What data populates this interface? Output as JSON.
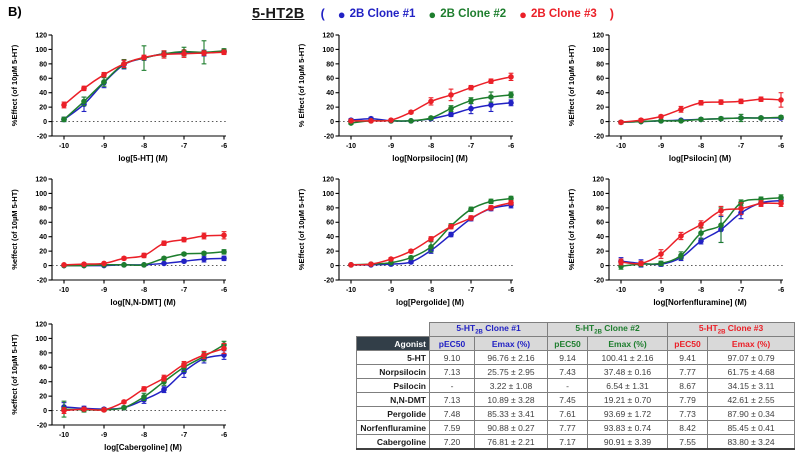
{
  "panel_label": "B)",
  "header": {
    "title": "5-HT2B",
    "paren_open": "(",
    "paren_close": ")",
    "legend": [
      {
        "label": "2B Clone #1",
        "color": "#2222c4"
      },
      {
        "label": "2B Clone #2",
        "color": "#1e7e2e"
      },
      {
        "label": "2B Clone #3",
        "color": "#eb2028"
      }
    ]
  },
  "chart_data": [
    {
      "id": "5-ht",
      "type": "line",
      "xlabel": "log[5-HT] (M)",
      "ylabel": "%Effect (of 10µM 5-HT)",
      "x": [
        -10,
        -9.5,
        -9,
        -8.5,
        -8,
        -7.5,
        -7,
        -6.5,
        -6
      ],
      "xticks": [
        -10,
        -9,
        -8,
        -7,
        -6
      ],
      "yticks": [
        -20,
        0,
        20,
        40,
        60,
        80,
        100,
        120
      ],
      "ylim": [
        -20,
        120
      ],
      "zero_line": true,
      "grid": false,
      "series": [
        {
          "name": "2B Clone #1",
          "color": "#2222c4",
          "values": [
            3,
            24,
            54,
            79,
            88,
            94,
            95,
            95,
            97
          ],
          "err": [
            3,
            10,
            7,
            6,
            3,
            3,
            3,
            4,
            3
          ]
        },
        {
          "name": "2B Clone #2",
          "color": "#1e7e2e",
          "values": [
            3,
            28,
            55,
            80,
            88,
            94,
            97,
            96,
            98
          ],
          "err": [
            3,
            6,
            6,
            6,
            17,
            4,
            6,
            16,
            3
          ]
        },
        {
          "name": "2B Clone #3",
          "color": "#eb2028",
          "values": [
            23,
            46,
            65,
            80,
            89,
            93,
            94,
            95,
            96
          ],
          "err": [
            4,
            3,
            3,
            5,
            3,
            5,
            5,
            3,
            3
          ]
        }
      ]
    },
    {
      "id": "norpsilocin",
      "type": "line",
      "xlabel": "log[Norpsilocin] (M)",
      "ylabel": "% Effect (of 10µM 5-HT)",
      "x": [
        -10,
        -9.5,
        -9,
        -8.5,
        -8,
        -7.5,
        -7,
        -6.5,
        -6
      ],
      "xticks": [
        -10,
        -9,
        -8,
        -7,
        -6
      ],
      "yticks": [
        -20,
        0,
        20,
        40,
        60,
        80,
        100,
        120
      ],
      "ylim": [
        -20,
        120
      ],
      "zero_line": true,
      "grid": false,
      "series": [
        {
          "name": "2B Clone #1",
          "color": "#2222c4",
          "values": [
            2,
            4,
            1,
            1,
            4,
            10,
            18,
            23,
            26
          ],
          "err": [
            2,
            2,
            1,
            1,
            2,
            3,
            7,
            9,
            4
          ]
        },
        {
          "name": "2B Clone #2",
          "color": "#1e7e2e",
          "values": [
            -2,
            1,
            1,
            1,
            5,
            18,
            29,
            34,
            37
          ],
          "err": [
            2,
            1,
            1,
            1,
            2,
            4,
            4,
            7,
            4
          ]
        },
        {
          "name": "2B Clone #3",
          "color": "#eb2028",
          "values": [
            1,
            1,
            2,
            13,
            28,
            37,
            47,
            56,
            62
          ],
          "err": [
            2,
            1,
            1,
            2,
            5,
            8,
            3,
            3,
            5
          ]
        }
      ]
    },
    {
      "id": "psilocin",
      "type": "line",
      "xlabel": "log[Psilocin] (M)",
      "ylabel": "%Effect (of 10µM 5-HT)",
      "x": [
        -10,
        -9.5,
        -9,
        -8.5,
        -8,
        -7.5,
        -7,
        -6.5,
        -6
      ],
      "xticks": [
        -10,
        -9,
        -8,
        -7,
        -6
      ],
      "yticks": [
        -20,
        0,
        20,
        40,
        60,
        80,
        100,
        120
      ],
      "ylim": [
        -20,
        120
      ],
      "zero_line": true,
      "grid": false,
      "series": [
        {
          "name": "2B Clone #1",
          "color": "#2222c4",
          "values": [
            -1,
            0,
            1,
            2,
            3,
            4,
            5,
            5,
            5
          ],
          "err": [
            2,
            1,
            1,
            1,
            1,
            2,
            2,
            2,
            2
          ]
        },
        {
          "name": "2B Clone #2",
          "color": "#1e7e2e",
          "values": [
            -1,
            0,
            1,
            1,
            3,
            4,
            5,
            5,
            6
          ],
          "err": [
            2,
            1,
            1,
            1,
            2,
            2,
            5,
            2,
            2
          ]
        },
        {
          "name": "2B Clone #3",
          "color": "#eb2028",
          "values": [
            -1,
            2,
            7,
            17,
            26,
            27,
            28,
            31,
            30
          ],
          "err": [
            2,
            2,
            2,
            4,
            3,
            3,
            3,
            3,
            10
          ]
        }
      ]
    },
    {
      "id": "nn-dmt",
      "type": "line",
      "xlabel": "log[N,N-DMT] (M)",
      "ylabel": "%effect (of 10µM 5-HT)",
      "x": [
        -10,
        -9.5,
        -9,
        -8.5,
        -8,
        -7.5,
        -7,
        -6.5,
        -6
      ],
      "xticks": [
        -10,
        -9,
        -8,
        -7,
        -6
      ],
      "yticks": [
        -20,
        0,
        20,
        40,
        60,
        80,
        100,
        120
      ],
      "ylim": [
        -20,
        120
      ],
      "zero_line": true,
      "grid": false,
      "series": [
        {
          "name": "2B Clone #1",
          "color": "#2222c4",
          "values": [
            0,
            0,
            0,
            1,
            1,
            3,
            6,
            9,
            10
          ],
          "err": [
            1,
            1,
            1,
            1,
            1,
            1,
            2,
            4,
            3
          ]
        },
        {
          "name": "2B Clone #2",
          "color": "#1e7e2e",
          "values": [
            0,
            0,
            1,
            1,
            1,
            10,
            16,
            17,
            19
          ],
          "err": [
            1,
            1,
            1,
            1,
            1,
            2,
            2,
            2,
            3
          ]
        },
        {
          "name": "2B Clone #3",
          "color": "#eb2028",
          "values": [
            1,
            2,
            3,
            10,
            14,
            31,
            36,
            41,
            42
          ],
          "err": [
            1,
            1,
            1,
            2,
            3,
            3,
            3,
            4,
            5
          ]
        }
      ]
    },
    {
      "id": "pergolide",
      "type": "line",
      "xlabel": "log[Pergolide] (M)",
      "ylabel": "%Effect (of 10µM 5-HT)",
      "x": [
        -10,
        -9.5,
        -9,
        -8.5,
        -8,
        -7.5,
        -7,
        -6.5,
        -6
      ],
      "xticks": [
        -10,
        -9,
        -8,
        -7,
        -6
      ],
      "yticks": [
        -20,
        0,
        20,
        40,
        60,
        80,
        100,
        120
      ],
      "ylim": [
        -20,
        120
      ],
      "zero_line": true,
      "grid": false,
      "series": [
        {
          "name": "2B Clone #1",
          "color": "#2222c4",
          "values": [
            1,
            1,
            2,
            5,
            21,
            43,
            65,
            79,
            84
          ],
          "err": [
            1,
            1,
            1,
            2,
            4,
            3,
            3,
            3,
            4
          ]
        },
        {
          "name": "2B Clone #2",
          "color": "#1e7e2e",
          "values": [
            1,
            2,
            4,
            11,
            26,
            55,
            78,
            89,
            93
          ],
          "err": [
            1,
            1,
            1,
            2,
            7,
            3,
            3,
            3,
            3
          ]
        },
        {
          "name": "2B Clone #3",
          "color": "#eb2028",
          "values": [
            1,
            2,
            9,
            20,
            37,
            54,
            66,
            80,
            87
          ],
          "err": [
            1,
            1,
            2,
            2,
            3,
            3,
            3,
            3,
            3
          ]
        }
      ]
    },
    {
      "id": "norfenfluramine",
      "type": "line",
      "xlabel": "log[Norfenfluramine] (M)",
      "ylabel": "%Effect (of 10µM 5-HT)",
      "x": [
        -10,
        -9.5,
        -9,
        -8.5,
        -8,
        -7.5,
        -7,
        -6.5,
        -6
      ],
      "xticks": [
        -10,
        -9,
        -8,
        -7,
        -6
      ],
      "yticks": [
        -20,
        0,
        20,
        40,
        60,
        80,
        100,
        120
      ],
      "ylim": [
        -20,
        120
      ],
      "zero_line": true,
      "grid": false,
      "series": [
        {
          "name": "2B Clone #1",
          "color": "#2222c4",
          "values": [
            6,
            3,
            2,
            11,
            34,
            50,
            73,
            87,
            90
          ],
          "err": [
            5,
            5,
            3,
            4,
            4,
            18,
            8,
            4,
            4
          ]
        },
        {
          "name": "2B Clone #2",
          "color": "#1e7e2e",
          "values": [
            -1,
            2,
            3,
            14,
            45,
            56,
            87,
            92,
            94
          ],
          "err": [
            4,
            3,
            3,
            5,
            8,
            24,
            4,
            3,
            4
          ]
        },
        {
          "name": "2B Clone #3",
          "color": "#eb2028",
          "values": [
            5,
            3,
            16,
            41,
            57,
            76,
            79,
            86,
            86
          ],
          "err": [
            4,
            3,
            6,
            5,
            5,
            6,
            8,
            4,
            4
          ]
        }
      ]
    },
    {
      "id": "cabergoline",
      "type": "line",
      "xlabel": "log[Cabergoline] (M)",
      "ylabel": "%effect (of 10µM 5-HT)",
      "x": [
        -10,
        -9.5,
        -9,
        -8.5,
        -8,
        -7.5,
        -7,
        -6.5,
        -6
      ],
      "xticks": [
        -10,
        -9,
        -8,
        -7,
        -6
      ],
      "yticks": [
        -20,
        0,
        20,
        40,
        60,
        80,
        100,
        120
      ],
      "ylim": [
        -20,
        120
      ],
      "zero_line": true,
      "grid": false,
      "series": [
        {
          "name": "2B Clone #1",
          "color": "#2222c4",
          "values": [
            5,
            3,
            2,
            4,
            15,
            29,
            54,
            72,
            77
          ],
          "err": [
            6,
            3,
            2,
            2,
            5,
            4,
            8,
            6,
            6
          ]
        },
        {
          "name": "2B Clone #2",
          "color": "#1e7e2e",
          "values": [
            2,
            1,
            1,
            4,
            19,
            40,
            60,
            75,
            91
          ],
          "err": [
            11,
            3,
            2,
            2,
            5,
            5,
            6,
            6,
            5
          ]
        },
        {
          "name": "2B Clone #3",
          "color": "#eb2028",
          "values": [
            0,
            2,
            1,
            12,
            30,
            45,
            64,
            77,
            86
          ],
          "err": [
            4,
            2,
            2,
            2,
            3,
            4,
            4,
            5,
            7
          ]
        }
      ]
    }
  ],
  "table": {
    "corner_label": "Agonist",
    "clone_headers": [
      {
        "pre": "5-HT",
        "sub": "2B",
        "post": " Clone #1",
        "color": "#2222c4"
      },
      {
        "pre": "5-HT",
        "sub": "2B",
        "post": " Clone #2",
        "color": "#1e7e2e"
      },
      {
        "pre": "5-HT",
        "sub": "2B",
        "post": " Clone #3",
        "color": "#eb2028"
      }
    ],
    "sub_headers": [
      "pEC50",
      "Emax (%)"
    ],
    "rows": [
      {
        "agonist": "5-HT",
        "values": [
          "9.10",
          "96.76 ± 2.16",
          "9.14",
          "100.41 ± 2.16",
          "9.41",
          "97.07 ± 0.79"
        ]
      },
      {
        "agonist": "Norpsilocin",
        "values": [
          "7.13",
          "25.75 ± 2.95",
          "7.43",
          "37.48 ± 0.16",
          "7.77",
          "61.75 ± 4.68"
        ]
      },
      {
        "agonist": "Psilocin",
        "values": [
          "-",
          "3.22 ± 1.08",
          "-",
          "6.54 ± 1.31",
          "8.67",
          "34.15 ± 3.11"
        ]
      },
      {
        "agonist": "N,N-DMT",
        "values": [
          "7.13",
          "10.89 ± 3.28",
          "7.45",
          "19.21 ± 0.70",
          "7.79",
          "42.61 ± 2.55"
        ]
      },
      {
        "agonist": "Pergolide",
        "values": [
          "7.48",
          "85.33 ± 3.41",
          "7.61",
          "93.69 ± 1.72",
          "7.73",
          "87.90 ± 0.34"
        ]
      },
      {
        "agonist": "Norfenfluramine",
        "values": [
          "7.59",
          "90.88 ± 0.27",
          "7.77",
          "93.83 ± 0.74",
          "8.42",
          "85.45 ± 0.41"
        ]
      },
      {
        "agonist": "Cabergoline",
        "values": [
          "7.20",
          "76.81 ± 2.21",
          "7.17",
          "90.91 ± 3.39",
          "7.55",
          "83.80 ± 3.24"
        ]
      }
    ],
    "colors": {
      "header_bg": "#d9d9d9",
      "agonist_header_bg": "#323e48",
      "border": "#7f7f7f"
    }
  }
}
